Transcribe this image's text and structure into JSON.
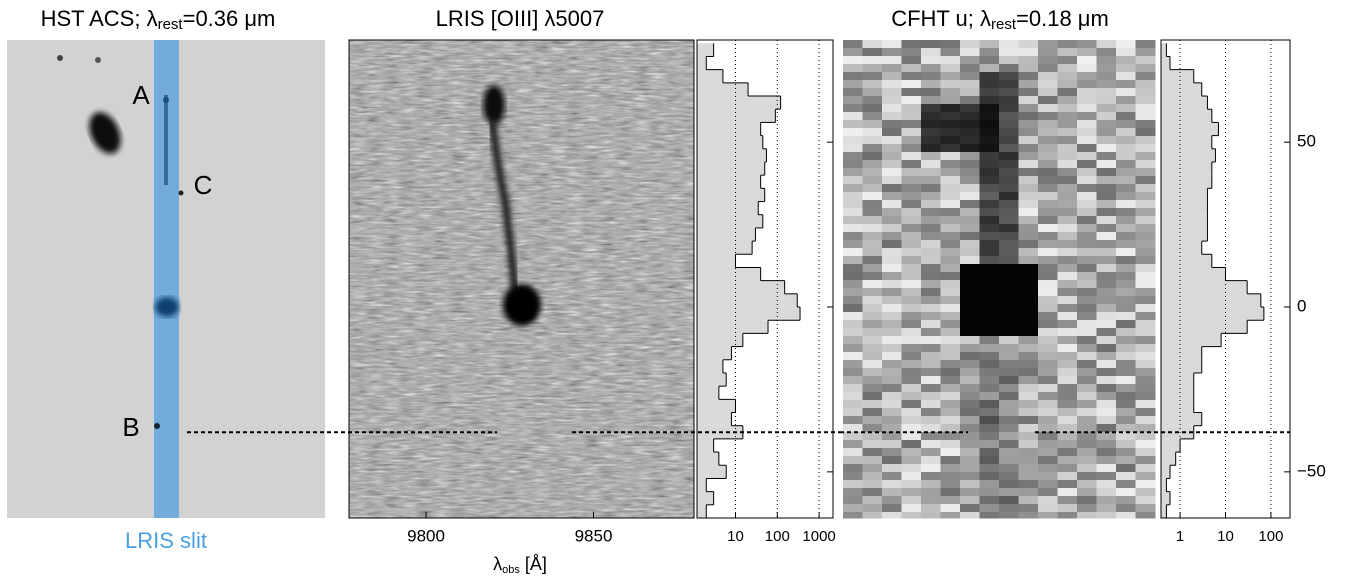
{
  "chart_data": [
    {
      "type": "image",
      "title_parts": [
        "HST ACS; λ",
        "rest",
        "=0.36 μm"
      ],
      "annotations": [
        "A",
        "C",
        "B"
      ],
      "slit_label": "LRIS slit"
    },
    {
      "type": "spectrum",
      "title": "LRIS [OIII] λ5007",
      "xlim": [
        9777,
        9880
      ],
      "xticks": [
        9800,
        9850
      ],
      "xlabel_parts": [
        "λ",
        "obs",
        " [Å]"
      ]
    },
    {
      "type": "histogram",
      "orientation": "horizontal",
      "log_x": true,
      "xlim": [
        1.2,
        2150
      ],
      "xticks": [
        10,
        100,
        1000
      ],
      "grid": true,
      "ylim": [
        -64,
        81
      ],
      "yticks": [
        50,
        0,
        -50
      ],
      "color": "#d9d9d9",
      "marker_y": -38,
      "bins": [
        -64,
        -60,
        -56,
        -52,
        -48,
        -44,
        -40,
        -36,
        -32,
        -28,
        -24,
        -20,
        -16,
        -12,
        -8,
        -4,
        0,
        4,
        8,
        12,
        16,
        20,
        24,
        28,
        32,
        36,
        40,
        44,
        48,
        52,
        56,
        60,
        64,
        68,
        72,
        76,
        80
      ],
      "values": [
        2,
        3,
        2,
        6,
        4,
        3,
        15,
        8,
        10,
        4,
        6,
        5,
        8,
        15,
        60,
        350,
        300,
        150,
        40,
        10,
        25,
        30,
        45,
        35,
        50,
        40,
        50,
        55,
        45,
        40,
        90,
        120,
        20,
        5,
        2,
        3
      ]
    },
    {
      "type": "image",
      "title_parts": [
        "CFHT u; λ",
        "rest",
        "=0.18 μm"
      ]
    },
    {
      "type": "histogram",
      "orientation": "horizontal",
      "log_x": true,
      "xlim": [
        0.38,
        263
      ],
      "xticks": [
        1,
        10,
        100
      ],
      "grid": true,
      "ylim": [
        -64,
        81
      ],
      "yticks": [
        50,
        0,
        {
          "value": -50,
          "label": "−50"
        }
      ],
      "color": "#d9d9d9",
      "marker_y": -38,
      "bins": [
        -64,
        -60,
        -56,
        -52,
        -48,
        -44,
        -40,
        -36,
        -32,
        -28,
        -24,
        -20,
        -16,
        -12,
        -8,
        -4,
        0,
        4,
        8,
        12,
        16,
        20,
        24,
        28,
        32,
        36,
        40,
        44,
        48,
        52,
        56,
        60,
        64,
        68,
        72,
        76,
        80
      ],
      "values": [
        0.5,
        0.6,
        0.5,
        0.6,
        0.8,
        1,
        2,
        3,
        2,
        2,
        2,
        3,
        3,
        8,
        30,
        70,
        60,
        30,
        10,
        5,
        3,
        4,
        4,
        4,
        4,
        5,
        5,
        6,
        5,
        7,
        5,
        4,
        3,
        2,
        0.6,
        0.5
      ]
    }
  ]
}
